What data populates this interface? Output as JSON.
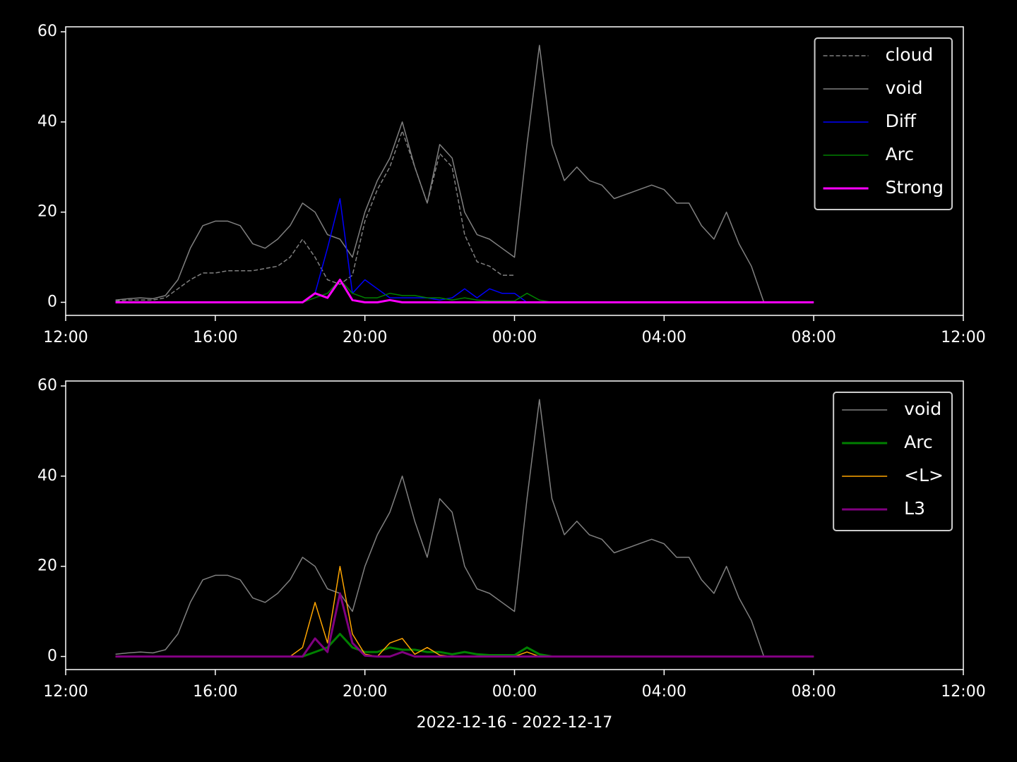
{
  "chart_data": [
    {
      "type": "line",
      "x": [
        "2022-12-16T13:20",
        "2022-12-16T13:40",
        "2022-12-16T14:00",
        "2022-12-16T14:20",
        "2022-12-16T14:40",
        "2022-12-16T15:00",
        "2022-12-16T15:20",
        "2022-12-16T15:40",
        "2022-12-16T16:00",
        "2022-12-16T16:20",
        "2022-12-16T16:40",
        "2022-12-16T17:00",
        "2022-12-16T17:20",
        "2022-12-16T17:40",
        "2022-12-16T18:00",
        "2022-12-16T18:20",
        "2022-12-16T18:40",
        "2022-12-16T19:00",
        "2022-12-16T19:20",
        "2022-12-16T19:40",
        "2022-12-16T20:00",
        "2022-12-16T20:20",
        "2022-12-16T20:40",
        "2022-12-16T21:00",
        "2022-12-16T21:20",
        "2022-12-16T21:40",
        "2022-12-16T22:00",
        "2022-12-16T22:20",
        "2022-12-16T22:40",
        "2022-12-16T23:00",
        "2022-12-16T23:20",
        "2022-12-16T23:40",
        "2022-12-17T00:00",
        "2022-12-17T00:20",
        "2022-12-17T00:40",
        "2022-12-17T01:00",
        "2022-12-17T01:20",
        "2022-12-17T01:40",
        "2022-12-17T02:00",
        "2022-12-17T02:20",
        "2022-12-17T02:40",
        "2022-12-17T03:00",
        "2022-12-17T03:20",
        "2022-12-17T03:40",
        "2022-12-17T04:00",
        "2022-12-17T04:20",
        "2022-12-17T04:40",
        "2022-12-17T05:00",
        "2022-12-17T05:20",
        "2022-12-17T05:40",
        "2022-12-17T06:00",
        "2022-12-17T06:20",
        "2022-12-17T06:40",
        "2022-12-17T07:00",
        "2022-12-17T07:20",
        "2022-12-17T07:40",
        "2022-12-17T08:00"
      ],
      "series": [
        {
          "name": "cloud",
          "color": "#808080",
          "linewidth": 1.5,
          "dashed": true,
          "values": [
            0.3,
            0.5,
            0.5,
            0.5,
            1,
            3,
            5,
            6.5,
            6.5,
            7,
            7,
            7,
            7.5,
            8,
            10,
            14,
            10,
            5,
            4,
            6,
            18,
            25,
            30,
            38,
            30,
            22,
            33,
            30,
            15,
            9,
            8,
            6,
            6,
            null,
            null,
            null,
            null,
            null,
            null,
            null,
            null,
            null,
            null,
            null,
            null,
            null,
            null,
            null,
            null,
            null,
            null,
            null,
            null,
            null,
            null,
            null,
            null
          ]
        },
        {
          "name": "void",
          "color": "#808080",
          "linewidth": 1.5,
          "values": [
            0.5,
            0.8,
            1,
            0.8,
            1.5,
            5,
            12,
            17,
            18,
            18,
            17,
            13,
            12,
            14,
            17,
            22,
            20,
            15,
            14,
            10,
            20,
            27,
            32,
            40,
            30,
            22,
            35,
            32,
            20,
            15,
            14,
            12,
            10,
            35,
            57,
            35,
            27,
            30,
            27,
            26,
            23,
            24,
            25,
            26,
            25,
            22,
            22,
            17,
            14,
            20,
            13,
            8,
            0,
            0,
            0,
            0,
            0
          ]
        },
        {
          "name": "Diff",
          "color": "#0000ff",
          "linewidth": 1.5,
          "values": [
            0,
            0,
            0,
            0,
            0,
            0,
            0,
            0,
            0,
            0,
            0,
            0,
            0,
            0,
            0,
            0,
            2,
            12,
            23,
            2,
            5,
            3,
            1,
            1,
            1,
            1,
            0.5,
            1,
            3,
            1,
            3,
            2,
            2,
            0,
            0,
            0,
            0,
            0,
            0,
            0,
            0,
            0,
            0,
            0,
            0,
            0,
            0,
            0,
            0,
            0,
            0,
            0,
            0,
            0,
            0,
            0,
            0
          ]
        },
        {
          "name": "Arc",
          "color": "#008000",
          "linewidth": 1.5,
          "values": [
            0,
            0,
            0,
            0,
            0,
            0,
            0,
            0,
            0,
            0,
            0,
            0,
            0,
            0,
            0,
            0,
            1,
            2,
            5,
            2,
            1,
            1,
            2,
            1.5,
            1.5,
            1,
            1,
            0.5,
            1,
            0.5,
            0.3,
            0.3,
            0.3,
            2,
            0.5,
            0,
            0,
            0,
            0,
            0,
            0,
            0,
            0,
            0,
            0,
            0,
            0,
            0,
            0,
            0,
            0,
            0,
            0,
            0,
            0,
            0,
            0
          ]
        },
        {
          "name": "Strong",
          "color": "#ff00ff",
          "linewidth": 3,
          "values": [
            0,
            0,
            0,
            0,
            0,
            0,
            0,
            0,
            0,
            0,
            0,
            0,
            0,
            0,
            0,
            0,
            2,
            1,
            5,
            0.5,
            0,
            0,
            0.5,
            0,
            0,
            0,
            0,
            0,
            0,
            0,
            0,
            0,
            0,
            0,
            0,
            0,
            0,
            0,
            0,
            0,
            0,
            0,
            0,
            0,
            0,
            0,
            0,
            0,
            0,
            0,
            0,
            0,
            0,
            0,
            0,
            0,
            0
          ]
        }
      ],
      "xlim": [
        "2022-12-16T12:00",
        "2022-12-17T12:00"
      ],
      "xticks": [
        {
          "value": "2022-12-16T12:00",
          "label": "12:00"
        },
        {
          "value": "2022-12-16T16:00",
          "label": "16:00"
        },
        {
          "value": "2022-12-16T20:00",
          "label": "20:00"
        },
        {
          "value": "2022-12-17T00:00",
          "label": "00:00"
        },
        {
          "value": "2022-12-17T04:00",
          "label": "04:00"
        },
        {
          "value": "2022-12-17T08:00",
          "label": "08:00"
        },
        {
          "value": "2022-12-17T12:00",
          "label": "12:00"
        }
      ],
      "ylim": [
        -2.9,
        61.1
      ],
      "yticks": [
        0,
        20,
        40,
        60
      ],
      "legend": "upper right"
    },
    {
      "type": "line",
      "x": [
        "2022-12-16T13:20",
        "2022-12-16T13:40",
        "2022-12-16T14:00",
        "2022-12-16T14:20",
        "2022-12-16T14:40",
        "2022-12-16T15:00",
        "2022-12-16T15:20",
        "2022-12-16T15:40",
        "2022-12-16T16:00",
        "2022-12-16T16:20",
        "2022-12-16T16:40",
        "2022-12-16T17:00",
        "2022-12-16T17:20",
        "2022-12-16T17:40",
        "2022-12-16T18:00",
        "2022-12-16T18:20",
        "2022-12-16T18:40",
        "2022-12-16T19:00",
        "2022-12-16T19:20",
        "2022-12-16T19:40",
        "2022-12-16T20:00",
        "2022-12-16T20:20",
        "2022-12-16T20:40",
        "2022-12-16T21:00",
        "2022-12-16T21:20",
        "2022-12-16T21:40",
        "2022-12-16T22:00",
        "2022-12-16T22:20",
        "2022-12-16T22:40",
        "2022-12-16T23:00",
        "2022-12-16T23:20",
        "2022-12-16T23:40",
        "2022-12-17T00:00",
        "2022-12-17T00:20",
        "2022-12-17T00:40",
        "2022-12-17T01:00",
        "2022-12-17T01:20",
        "2022-12-17T01:40",
        "2022-12-17T02:00",
        "2022-12-17T02:20",
        "2022-12-17T02:40",
        "2022-12-17T03:00",
        "2022-12-17T03:20",
        "2022-12-17T03:40",
        "2022-12-17T04:00",
        "2022-12-17T04:20",
        "2022-12-17T04:40",
        "2022-12-17T05:00",
        "2022-12-17T05:20",
        "2022-12-17T05:40",
        "2022-12-17T06:00",
        "2022-12-17T06:20",
        "2022-12-17T06:40",
        "2022-12-17T07:00",
        "2022-12-17T07:20",
        "2022-12-17T07:40",
        "2022-12-17T08:00"
      ],
      "series": [
        {
          "name": "void",
          "color": "#808080",
          "linewidth": 1.5,
          "values": [
            0.5,
            0.8,
            1,
            0.8,
            1.5,
            5,
            12,
            17,
            18,
            18,
            17,
            13,
            12,
            14,
            17,
            22,
            20,
            15,
            14,
            10,
            20,
            27,
            32,
            40,
            30,
            22,
            35,
            32,
            20,
            15,
            14,
            12,
            10,
            35,
            57,
            35,
            27,
            30,
            27,
            26,
            23,
            24,
            25,
            26,
            25,
            22,
            22,
            17,
            14,
            20,
            13,
            8,
            0,
            0,
            0,
            0,
            0
          ]
        },
        {
          "name": "Arc",
          "color": "#008000",
          "linewidth": 3,
          "values": [
            0,
            0,
            0,
            0,
            0,
            0,
            0,
            0,
            0,
            0,
            0,
            0,
            0,
            0,
            0,
            0,
            1,
            2,
            5,
            2,
            1,
            1,
            2,
            1.5,
            1.5,
            1,
            1,
            0.5,
            1,
            0.5,
            0.3,
            0.3,
            0.3,
            2,
            0.5,
            0,
            0,
            0,
            0,
            0,
            0,
            0,
            0,
            0,
            0,
            0,
            0,
            0,
            0,
            0,
            0,
            0,
            0,
            0,
            0,
            0,
            0
          ]
        },
        {
          "name": "<L>",
          "color": "#ffa500",
          "linewidth": 1.5,
          "values": [
            0,
            0,
            0,
            0,
            0,
            0,
            0,
            0,
            0,
            0,
            0,
            0,
            0,
            0,
            0,
            2,
            12,
            3,
            20,
            5,
            0.5,
            0,
            3,
            4,
            0.5,
            2,
            0.3,
            0,
            0,
            0,
            0,
            0,
            0,
            1,
            0,
            0,
            0,
            0,
            0,
            0,
            0,
            0,
            0,
            0,
            0,
            0,
            0,
            0,
            0,
            0,
            0,
            0,
            0,
            0,
            0,
            0,
            0
          ]
        },
        {
          "name": "L3",
          "color": "#800080",
          "linewidth": 3,
          "values": [
            0,
            0,
            0,
            0,
            0,
            0,
            0,
            0,
            0,
            0,
            0,
            0,
            0,
            0,
            0,
            0,
            4,
            1,
            14,
            3,
            0.2,
            0,
            0,
            1,
            0,
            0,
            0,
            0,
            0,
            0,
            0,
            0,
            0,
            0,
            0,
            0,
            0,
            0,
            0,
            0,
            0,
            0,
            0,
            0,
            0,
            0,
            0,
            0,
            0,
            0,
            0,
            0,
            0,
            0,
            0,
            0,
            0
          ]
        }
      ],
      "xlim": [
        "2022-12-16T12:00",
        "2022-12-17T12:00"
      ],
      "xticks": [
        {
          "value": "2022-12-16T12:00",
          "label": "12:00"
        },
        {
          "value": "2022-12-16T16:00",
          "label": "16:00"
        },
        {
          "value": "2022-12-16T20:00",
          "label": "20:00"
        },
        {
          "value": "2022-12-17T00:00",
          "label": "00:00"
        },
        {
          "value": "2022-12-17T04:00",
          "label": "04:00"
        },
        {
          "value": "2022-12-17T08:00",
          "label": "08:00"
        },
        {
          "value": "2022-12-17T12:00",
          "label": "12:00"
        }
      ],
      "ylim": [
        -2.9,
        61.1
      ],
      "yticks": [
        0,
        20,
        40,
        60
      ],
      "legend": "upper right",
      "xlabel": "2022-12-16 - 2022-12-17"
    }
  ]
}
